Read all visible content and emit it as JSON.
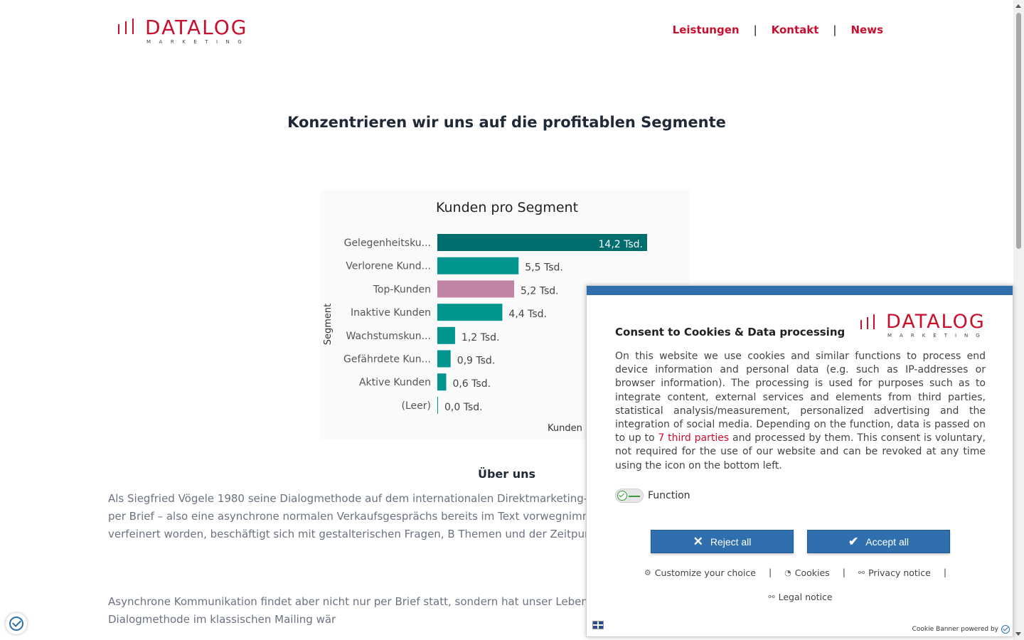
{
  "header": {
    "logo_text": "DATALOG",
    "logo_sub": "MARKETING",
    "nav": [
      {
        "label": "Leistungen"
      },
      {
        "label": "Kontakt"
      },
      {
        "label": "News"
      }
    ],
    "nav_separator": "|"
  },
  "main": {
    "title": "Konzentrieren wir uns auf die profitablen Segmente",
    "about_title": "Über uns",
    "paragraph1": "Als Siegfried Vögele 1980 seine Dialogmethode auf dem internationalen Direktmarketing- ein wissenschaftliches Fundament für den Kundendialog per Brief – also eine asynchrone normalen Verkaufsgesprächs bereits im Text vorwegnimmt und beantwortet. Dieses wisse Laufe der Jahre deutlich verfeinert worden, beschäftigt sich mit gestalterischen Fragen, B Themen und der Zeitpunkt der Kommunikation außer acht gelassen werden.",
    "paragraph2": "Asynchrone Kommunikation findet aber nicht nur per Brief statt, sondern hat unser Leben ebenso wie im E-Commerce. Siegfried Vögeles Dialogmethode im klassischen Mailing wär"
  },
  "chart_data": {
    "type": "bar",
    "orientation": "horizontal",
    "title": "Kunden pro Segment",
    "ylabel": "Segment",
    "xlabel": "Kunden",
    "categories": [
      "Gelegenheitsku...",
      "Verlorene Kund...",
      "Top-Kunden",
      "Inaktive Kunden",
      "Wachstumskun...",
      "Gefährdete Kun...",
      "Aktive Kunden",
      "(Leer)"
    ],
    "values": [
      14.2,
      5.5,
      5.2,
      4.4,
      1.2,
      0.9,
      0.6,
      0.0
    ],
    "labels": [
      "14,2 Tsd.",
      "5,5 Tsd.",
      "5,2 Tsd.",
      "4,4 Tsd.",
      "1,2 Tsd.",
      "0,9 Tsd.",
      "0,6 Tsd.",
      "0,0 Tsd."
    ],
    "unit": "Tsd.",
    "colors": [
      "#006e6e",
      "#00958f",
      "#c284a6",
      "#00958f",
      "#00958f",
      "#00958f",
      "#00958f",
      "#00958f"
    ],
    "xlim": [
      0,
      14.2
    ],
    "grid": false
  },
  "cookie_banner": {
    "title": "Consent to Cookies & Data processing",
    "text_before_link": "On this website we use cookies and similar functions to process end device information and personal data (e.g. such as IP-addresses or browser information). The processing is used for purposes such as to integrate content, external services and elements from third parties, statistical analysis/measurement, personalized advertising and the integration of social media. Depending on the function, data is passed on to up to ",
    "link_text": "7 third parties",
    "text_after_link": " and processed by them. This consent is voluntary, not required for the use of our website and can be revoked at any time using the icon on the bottom left.",
    "toggle_label": "Function",
    "reject_label": "Reject all",
    "accept_label": "Accept all",
    "links": [
      {
        "label": "Customize your choice",
        "icon": "gear-icon"
      },
      {
        "label": "Cookies",
        "icon": "cookie-icon"
      },
      {
        "label": "Privacy notice",
        "icon": "link-icon"
      },
      {
        "label": "Legal notice",
        "icon": "link-icon"
      }
    ],
    "link_separator": "|",
    "powered_by": "Cookie Banner powered by",
    "accent_color": "#2f6fad"
  }
}
